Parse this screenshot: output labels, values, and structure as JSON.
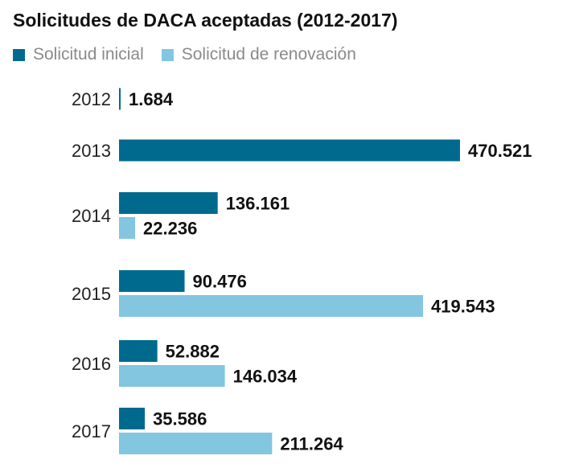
{
  "chart_data": {
    "type": "bar",
    "orientation": "horizontal",
    "title": "Solicitudes de DACA aceptadas (2012-2017)",
    "categories": [
      "2012",
      "2013",
      "2014",
      "2015",
      "2016",
      "2017"
    ],
    "series": [
      {
        "name": "Solicitud inicial",
        "color": "#006a8e",
        "values": [
          1684,
          470521,
          136161,
          90476,
          52882,
          35586
        ],
        "labels": [
          "1.684",
          "470.521",
          "136.161",
          "90.476",
          "52.882",
          "35.586"
        ]
      },
      {
        "name": "Solicitud de renovación",
        "color": "#82c6e0",
        "values": [
          null,
          null,
          22236,
          419543,
          146034,
          211264
        ],
        "labels": [
          null,
          null,
          "22.236",
          "419.543",
          "146.034",
          "211.264"
        ]
      }
    ],
    "xlabel": "",
    "ylabel": "",
    "grid": false,
    "legend_position": "top-left"
  }
}
